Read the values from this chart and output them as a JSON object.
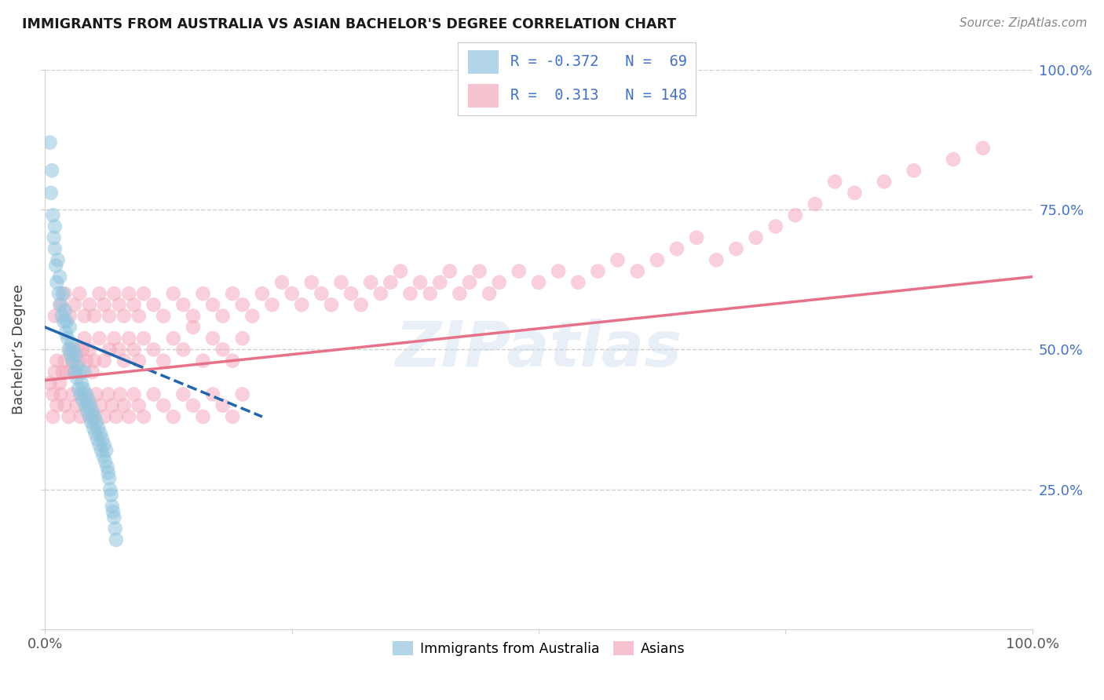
{
  "title": "IMMIGRANTS FROM AUSTRALIA VS ASIAN BACHELOR'S DEGREE CORRELATION CHART",
  "source": "Source: ZipAtlas.com",
  "ylabel": "Bachelor’s Degree",
  "xmin": 0.0,
  "xmax": 1.0,
  "ymin": 0.0,
  "ymax": 1.0,
  "blue_color": "#92c5de",
  "pink_color": "#f4a9bc",
  "blue_line_color": "#2166ac",
  "pink_line_color": "#e8718a",
  "legend_text_color": "#4472c4",
  "tick_color": "#4472c4",
  "grid_color": "#d0d0d0",
  "legend_blue_r": "-0.372",
  "legend_blue_n": "69",
  "legend_pink_r": "0.313",
  "legend_pink_n": "148",
  "legend_label_blue": "Immigrants from Australia",
  "legend_label_pink": "Asians",
  "watermark": "ZIPatlas",
  "blue_x": [
    0.005,
    0.006,
    0.007,
    0.008,
    0.009,
    0.01,
    0.01,
    0.011,
    0.012,
    0.013,
    0.014,
    0.015,
    0.016,
    0.017,
    0.018,
    0.019,
    0.02,
    0.021,
    0.022,
    0.023,
    0.024,
    0.025,
    0.026,
    0.027,
    0.028,
    0.029,
    0.03,
    0.031,
    0.032,
    0.033,
    0.034,
    0.035,
    0.036,
    0.037,
    0.038,
    0.039,
    0.04,
    0.041,
    0.042,
    0.043,
    0.044,
    0.045,
    0.046,
    0.047,
    0.048,
    0.049,
    0.05,
    0.051,
    0.052,
    0.053,
    0.054,
    0.055,
    0.056,
    0.057,
    0.058,
    0.059,
    0.06,
    0.061,
    0.062,
    0.063,
    0.064,
    0.065,
    0.066,
    0.067,
    0.068,
    0.069,
    0.07,
    0.071,
    0.072
  ],
  "blue_y": [
    0.87,
    0.78,
    0.82,
    0.74,
    0.7,
    0.68,
    0.72,
    0.65,
    0.62,
    0.66,
    0.6,
    0.63,
    0.58,
    0.56,
    0.6,
    0.55,
    0.57,
    0.53,
    0.55,
    0.52,
    0.5,
    0.54,
    0.49,
    0.51,
    0.48,
    0.5,
    0.46,
    0.49,
    0.45,
    0.47,
    0.43,
    0.46,
    0.42,
    0.44,
    0.41,
    0.43,
    0.46,
    0.4,
    0.42,
    0.39,
    0.41,
    0.38,
    0.4,
    0.37,
    0.39,
    0.36,
    0.38,
    0.35,
    0.37,
    0.34,
    0.36,
    0.33,
    0.35,
    0.32,
    0.34,
    0.31,
    0.33,
    0.3,
    0.32,
    0.29,
    0.28,
    0.27,
    0.25,
    0.24,
    0.22,
    0.21,
    0.2,
    0.18,
    0.16
  ],
  "pink_x": [
    0.005,
    0.008,
    0.01,
    0.012,
    0.015,
    0.018,
    0.02,
    0.022,
    0.025,
    0.028,
    0.03,
    0.032,
    0.035,
    0.038,
    0.04,
    0.042,
    0.045,
    0.048,
    0.05,
    0.055,
    0.06,
    0.065,
    0.07,
    0.075,
    0.08,
    0.085,
    0.09,
    0.095,
    0.1,
    0.11,
    0.12,
    0.13,
    0.14,
    0.15,
    0.16,
    0.17,
    0.18,
    0.19,
    0.2,
    0.008,
    0.012,
    0.016,
    0.02,
    0.024,
    0.028,
    0.032,
    0.036,
    0.04,
    0.044,
    0.048,
    0.052,
    0.056,
    0.06,
    0.064,
    0.068,
    0.072,
    0.076,
    0.08,
    0.085,
    0.09,
    0.095,
    0.1,
    0.11,
    0.12,
    0.13,
    0.14,
    0.15,
    0.16,
    0.17,
    0.18,
    0.19,
    0.2,
    0.01,
    0.015,
    0.02,
    0.025,
    0.03,
    0.035,
    0.04,
    0.045,
    0.05,
    0.055,
    0.06,
    0.065,
    0.07,
    0.075,
    0.08,
    0.085,
    0.09,
    0.095,
    0.1,
    0.11,
    0.12,
    0.13,
    0.14,
    0.15,
    0.16,
    0.17,
    0.18,
    0.19,
    0.2,
    0.21,
    0.22,
    0.23,
    0.24,
    0.25,
    0.26,
    0.27,
    0.28,
    0.29,
    0.3,
    0.31,
    0.32,
    0.33,
    0.34,
    0.35,
    0.36,
    0.37,
    0.38,
    0.39,
    0.4,
    0.41,
    0.42,
    0.43,
    0.44,
    0.45,
    0.46,
    0.48,
    0.5,
    0.52,
    0.54,
    0.56,
    0.58,
    0.6,
    0.62,
    0.64,
    0.66,
    0.68,
    0.7,
    0.72,
    0.74,
    0.76,
    0.78,
    0.8,
    0.82,
    0.85,
    0.88,
    0.92,
    0.95
  ],
  "pink_y": [
    0.44,
    0.42,
    0.46,
    0.48,
    0.44,
    0.46,
    0.48,
    0.46,
    0.5,
    0.48,
    0.46,
    0.5,
    0.48,
    0.5,
    0.52,
    0.48,
    0.5,
    0.46,
    0.48,
    0.52,
    0.48,
    0.5,
    0.52,
    0.5,
    0.48,
    0.52,
    0.5,
    0.48,
    0.52,
    0.5,
    0.48,
    0.52,
    0.5,
    0.54,
    0.48,
    0.52,
    0.5,
    0.48,
    0.52,
    0.38,
    0.4,
    0.42,
    0.4,
    0.38,
    0.42,
    0.4,
    0.38,
    0.42,
    0.4,
    0.38,
    0.42,
    0.4,
    0.38,
    0.42,
    0.4,
    0.38,
    0.42,
    0.4,
    0.38,
    0.42,
    0.4,
    0.38,
    0.42,
    0.4,
    0.38,
    0.42,
    0.4,
    0.38,
    0.42,
    0.4,
    0.38,
    0.42,
    0.56,
    0.58,
    0.6,
    0.56,
    0.58,
    0.6,
    0.56,
    0.58,
    0.56,
    0.6,
    0.58,
    0.56,
    0.6,
    0.58,
    0.56,
    0.6,
    0.58,
    0.56,
    0.6,
    0.58,
    0.56,
    0.6,
    0.58,
    0.56,
    0.6,
    0.58,
    0.56,
    0.6,
    0.58,
    0.56,
    0.6,
    0.58,
    0.62,
    0.6,
    0.58,
    0.62,
    0.6,
    0.58,
    0.62,
    0.6,
    0.58,
    0.62,
    0.6,
    0.62,
    0.64,
    0.6,
    0.62,
    0.6,
    0.62,
    0.64,
    0.6,
    0.62,
    0.64,
    0.6,
    0.62,
    0.64,
    0.62,
    0.64,
    0.62,
    0.64,
    0.66,
    0.64,
    0.66,
    0.68,
    0.7,
    0.66,
    0.68,
    0.7,
    0.72,
    0.74,
    0.76,
    0.8,
    0.78,
    0.8,
    0.82,
    0.84,
    0.86
  ],
  "blue_line_x0": 0.0,
  "blue_line_x1": 0.22,
  "blue_line_y0": 0.54,
  "blue_line_y1": 0.38,
  "blue_line_solid_end": 0.09,
  "pink_line_x0": 0.0,
  "pink_line_x1": 1.0,
  "pink_line_y0": 0.445,
  "pink_line_y1": 0.63
}
